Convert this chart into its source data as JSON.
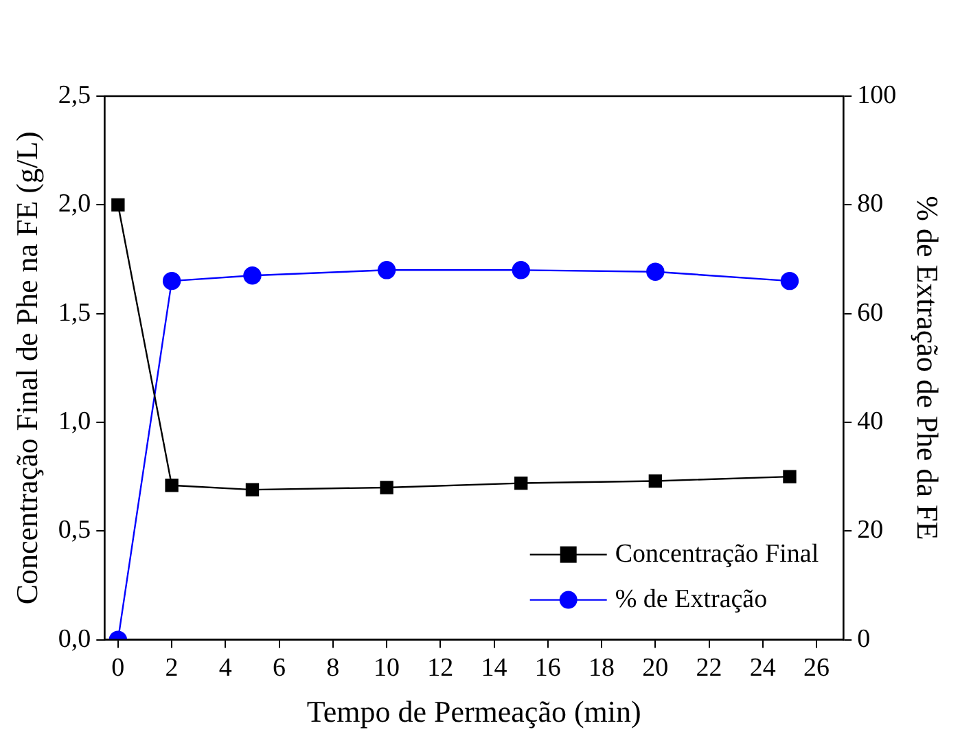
{
  "chart_data": {
    "type": "line",
    "xlabel": "Tempo de Permeação (min)",
    "ylabel": "Concentração Final de Phe na FE (g/L)",
    "y2label": "% de Extração de Phe da FE",
    "x": [
      0,
      2,
      5,
      10,
      15,
      20,
      25
    ],
    "series": [
      {
        "name": "Concentração Final",
        "color": "#000000",
        "marker": "square",
        "values": [
          2.0,
          0.71,
          0.69,
          0.7,
          0.72,
          0.73,
          0.75
        ]
      },
      {
        "name": "% de Extração",
        "color": "#0000ff",
        "marker": "circle",
        "axis": "y2",
        "values": [
          0,
          66,
          67,
          68,
          68,
          67.7,
          66
        ]
      }
    ],
    "xlim": [
      -0.5,
      27
    ],
    "xticks": [
      0,
      2,
      4,
      6,
      8,
      10,
      12,
      14,
      16,
      18,
      20,
      22,
      24,
      26
    ],
    "ylim": [
      0,
      2.5
    ],
    "yticks": [
      {
        "value": 0,
        "label": "0,0"
      },
      {
        "value": 0.5,
        "label": "0,5"
      },
      {
        "value": 1,
        "label": "1,0"
      },
      {
        "value": 1.5,
        "label": "1,5"
      },
      {
        "value": 2,
        "label": "2,0"
      },
      {
        "value": 2.5,
        "label": "2,5"
      }
    ],
    "y2lim": [
      0,
      100
    ],
    "y2ticks": [
      0,
      20,
      40,
      60,
      80,
      100
    ],
    "grid": false,
    "legend": "bottom right",
    "line_style": "solid"
  }
}
